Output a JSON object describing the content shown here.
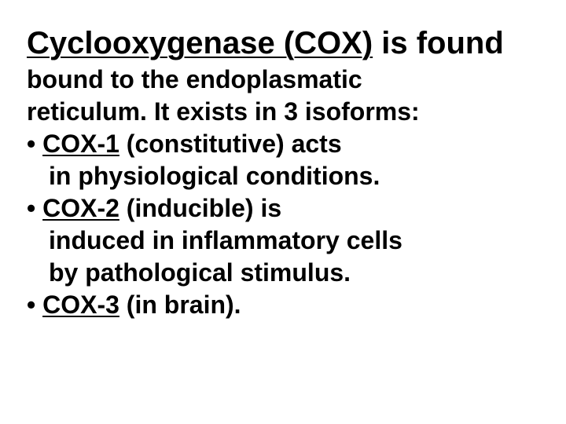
{
  "background_color": "#ffffff",
  "text_color": "#000000",
  "font_family": "Arial",
  "heading": {
    "underlined": "Cyclooxygenase (COX)",
    "rest": " is found",
    "fontsize_pt": 30,
    "weight": "bold"
  },
  "body": {
    "fontsize_pt": 24,
    "weight": "bold",
    "lines": {
      "l1": "bound to the endoplasmatic",
      "l2": "reticulum. It exists in 3 isoforms:"
    }
  },
  "bullets": [
    {
      "dot": "•",
      "label_underlined": "COX-1",
      "rest": " (constitutive) acts",
      "cont": [
        "in physiological conditions."
      ]
    },
    {
      "dot": "•",
      "label_underlined": "COX-2",
      "rest": " (inducible) is",
      "cont": [
        "induced in inflammatory cells",
        "by pathological stimulus."
      ]
    },
    {
      "dot": "•",
      "label_underlined": "COX-3",
      "rest": " (in brain).",
      "cont": []
    }
  ]
}
